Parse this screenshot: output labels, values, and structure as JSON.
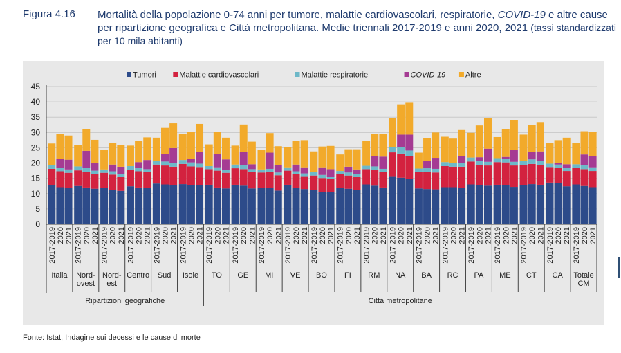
{
  "figure": {
    "label": "Figura 4.16",
    "title_main": "Mortalità della popolazione 0-74 anni per tumore, malattie cardiovascolari, respiratorie, ",
    "title_italic": "COVID-19",
    "title_rest": " e altre cause per ripartizione geografica e Città metropolitana. Medie triennali 2017-2019 e anni 2020, 2021 ",
    "title_sub": "(tassi standardizzati per 10 mila abitanti)",
    "source": "Fonte: Istat, Indagine sui decessi e le cause di morte"
  },
  "colors": {
    "tumori": "#2d4b8a",
    "cardio": "#d3223f",
    "resp": "#6db8c8",
    "covid": "#a53b93",
    "altre": "#f2aa2b",
    "axis": "#444444",
    "grid": "#c9c9c9"
  },
  "chart_data": {
    "type": "bar",
    "stacked": true,
    "ylim": [
      0,
      45
    ],
    "yticks": [
      0,
      5,
      10,
      15,
      20,
      25,
      30,
      35,
      40,
      45
    ],
    "period_labels": [
      "2017-2019",
      "2020",
      "2021"
    ],
    "legend": [
      {
        "key": "tumori",
        "label": "Tumori",
        "italic": false
      },
      {
        "key": "cardio",
        "label": "Malattie cardiovascolari",
        "italic": false
      },
      {
        "key": "resp",
        "label": "Malattie respiratorie",
        "italic": false
      },
      {
        "key": "covid",
        "label": "COVID-19",
        "italic": true
      },
      {
        "key": "altre",
        "label": "Altre",
        "italic": false
      }
    ],
    "groups": [
      {
        "name": "Italia",
        "lines": [
          "Italia"
        ],
        "bars": [
          [
            12.7,
            5.4,
            1.2,
            0,
            7.1
          ],
          [
            12.1,
            5.2,
            1.2,
            2.9,
            8.0
          ],
          [
            11.8,
            5.0,
            1.1,
            3.2,
            7.9
          ]
        ]
      },
      {
        "name": "Nord-ovest",
        "lines": [
          "Nord-",
          "ovest"
        ],
        "bars": [
          [
            12.5,
            5.1,
            1.3,
            0,
            6.9
          ],
          [
            12.0,
            5.1,
            1.4,
            5.5,
            7.2
          ],
          [
            11.6,
            4.8,
            1.1,
            2.5,
            7.6
          ]
        ]
      },
      {
        "name": "Nord-est",
        "lines": [
          "Nord-",
          "est"
        ],
        "bars": [
          [
            11.9,
            4.9,
            1.1,
            0,
            6.3
          ],
          [
            11.3,
            4.9,
            1.1,
            2.2,
            7.0
          ],
          [
            10.9,
            4.5,
            0.9,
            2.5,
            7.1
          ]
        ]
      },
      {
        "name": "Centro",
        "lines": [
          "Centro"
        ],
        "bars": [
          [
            12.4,
            5.4,
            1.2,
            0,
            6.7
          ],
          [
            12.0,
            5.3,
            1.1,
            1.9,
            7.0
          ],
          [
            11.8,
            5.2,
            1.0,
            3.0,
            7.4
          ]
        ]
      },
      {
        "name": "Sud",
        "lines": [
          "Sud"
        ],
        "bars": [
          [
            13.3,
            6.2,
            1.3,
            0,
            7.5
          ],
          [
            13.0,
            6.2,
            1.3,
            2.5,
            8.5
          ],
          [
            12.7,
            6.1,
            1.2,
            4.9,
            8.1
          ]
        ]
      },
      {
        "name": "Isole",
        "lines": [
          "Isole"
        ],
        "bars": [
          [
            13.1,
            6.6,
            1.3,
            0,
            8.6
          ],
          [
            12.7,
            6.2,
            1.3,
            1.2,
            8.7
          ],
          [
            12.7,
            6.0,
            1.1,
            3.8,
            9.2
          ]
        ]
      },
      {
        "name": "TO",
        "lines": [
          "TO"
        ],
        "bars": [
          [
            12.9,
            5.1,
            1.0,
            0,
            7.1
          ],
          [
            12.0,
            5.5,
            1.1,
            4.4,
            7.1
          ],
          [
            11.7,
            5.1,
            1.0,
            3.4,
            7.1
          ]
        ]
      },
      {
        "name": "GE",
        "lines": [
          "GE"
        ],
        "bars": [
          [
            12.9,
            5.4,
            1.2,
            0,
            6.2
          ],
          [
            12.6,
            5.4,
            1.3,
            4.4,
            8.9
          ],
          [
            11.7,
            5.3,
            1.0,
            1.6,
            7.4
          ]
        ]
      },
      {
        "name": "MI",
        "lines": [
          "MI"
        ],
        "bars": [
          [
            11.8,
            5.1,
            1.0,
            0,
            6.3
          ],
          [
            11.8,
            5.2,
            1.1,
            5.3,
            6.4
          ],
          [
            11.0,
            5.0,
            0.9,
            2.4,
            6.2
          ]
        ]
      },
      {
        "name": "VE",
        "lines": [
          "VE"
        ],
        "bars": [
          [
            12.9,
            4.6,
            1.1,
            0,
            6.7
          ],
          [
            11.8,
            4.5,
            1.0,
            2.2,
            7.7
          ],
          [
            11.5,
            4.2,
            0.9,
            2.0,
            8.9
          ]
        ]
      },
      {
        "name": "BO",
        "lines": [
          "BO"
        ],
        "bars": [
          [
            11.3,
            4.6,
            1.2,
            0,
            6.7
          ],
          [
            10.6,
            4.5,
            1.0,
            2.5,
            6.8
          ],
          [
            10.4,
            4.3,
            0.9,
            2.4,
            7.6
          ]
        ]
      },
      {
        "name": "FI",
        "lines": [
          "FI"
        ],
        "bars": [
          [
            11.8,
            4.6,
            1.0,
            0,
            5.4
          ],
          [
            11.6,
            4.3,
            1.0,
            1.9,
            5.7
          ],
          [
            11.2,
            4.3,
            0.9,
            1.5,
            6.6
          ]
        ]
      },
      {
        "name": "RM",
        "lines": [
          "RM"
        ],
        "bars": [
          [
            13.0,
            5.0,
            1.1,
            0,
            8.1
          ],
          [
            12.6,
            5.2,
            1.1,
            3.3,
            7.4
          ],
          [
            12.0,
            5.0,
            1.1,
            4.0,
            7.3
          ]
        ]
      },
      {
        "name": "NA",
        "lines": [
          "NA"
        ],
        "bars": [
          [
            15.7,
            7.8,
            1.8,
            0,
            9.3
          ],
          [
            15.2,
            7.9,
            2.0,
            4.2,
            9.9
          ],
          [
            14.9,
            7.3,
            1.9,
            5.2,
            10.4
          ]
        ]
      },
      {
        "name": "BA",
        "lines": [
          "BA"
        ],
        "bars": [
          [
            11.7,
            5.3,
            1.2,
            0,
            5.2
          ],
          [
            11.5,
            5.5,
            1.3,
            2.5,
            7.3
          ],
          [
            11.4,
            5.5,
            1.2,
            3.6,
            8.3
          ]
        ]
      },
      {
        "name": "RC",
        "lines": [
          "RC"
        ],
        "bars": [
          [
            12.1,
            6.9,
            1.3,
            0,
            8.3
          ],
          [
            12.1,
            6.7,
            1.2,
            0,
            8.0
          ],
          [
            11.8,
            7.0,
            1.2,
            2.2,
            8.6
          ]
        ]
      },
      {
        "name": "PA",
        "lines": [
          "PA"
        ],
        "bars": [
          [
            13.0,
            7.5,
            1.3,
            0,
            8.1
          ],
          [
            12.8,
            6.6,
            1.3,
            1.2,
            10.4
          ],
          [
            12.6,
            6.6,
            1.2,
            4.3,
            10.1
          ]
        ]
      },
      {
        "name": "ME",
        "lines": [
          "ME"
        ],
        "bars": [
          [
            12.9,
            7.4,
            1.3,
            0,
            6.9
          ],
          [
            12.7,
            7.5,
            1.2,
            0.6,
            9.0
          ],
          [
            12.2,
            7.0,
            1.2,
            3.9,
            9.7
          ]
        ]
      },
      {
        "name": "CT",
        "lines": [
          "CT"
        ],
        "bars": [
          [
            12.7,
            6.7,
            1.4,
            0,
            8.5
          ],
          [
            13.1,
            6.6,
            1.5,
            2.5,
            8.8
          ],
          [
            12.9,
            6.4,
            1.4,
            3.1,
            9.6
          ]
        ]
      },
      {
        "name": "CA",
        "lines": [
          "CA"
        ],
        "bars": [
          [
            13.6,
            5.1,
            1.1,
            0,
            6.7
          ],
          [
            13.4,
            5.0,
            1.1,
            0.4,
            7.6
          ],
          [
            12.4,
            5.0,
            1.1,
            1.1,
            8.7
          ]
        ]
      },
      {
        "name": "Totale CM",
        "lines": [
          "Totale",
          "CM"
        ],
        "bars": [
          [
            13.0,
            5.4,
            1.2,
            0,
            7.0
          ],
          [
            12.5,
            5.5,
            1.3,
            3.5,
            7.6
          ],
          [
            12.1,
            5.3,
            1.2,
            3.7,
            7.8
          ]
        ]
      }
    ],
    "macro_groups": [
      {
        "label": "Ripartizioni geografiche",
        "from": 0,
        "to": 5
      },
      {
        "label": "Città metropolitane",
        "from": 6,
        "to": 20
      }
    ]
  }
}
